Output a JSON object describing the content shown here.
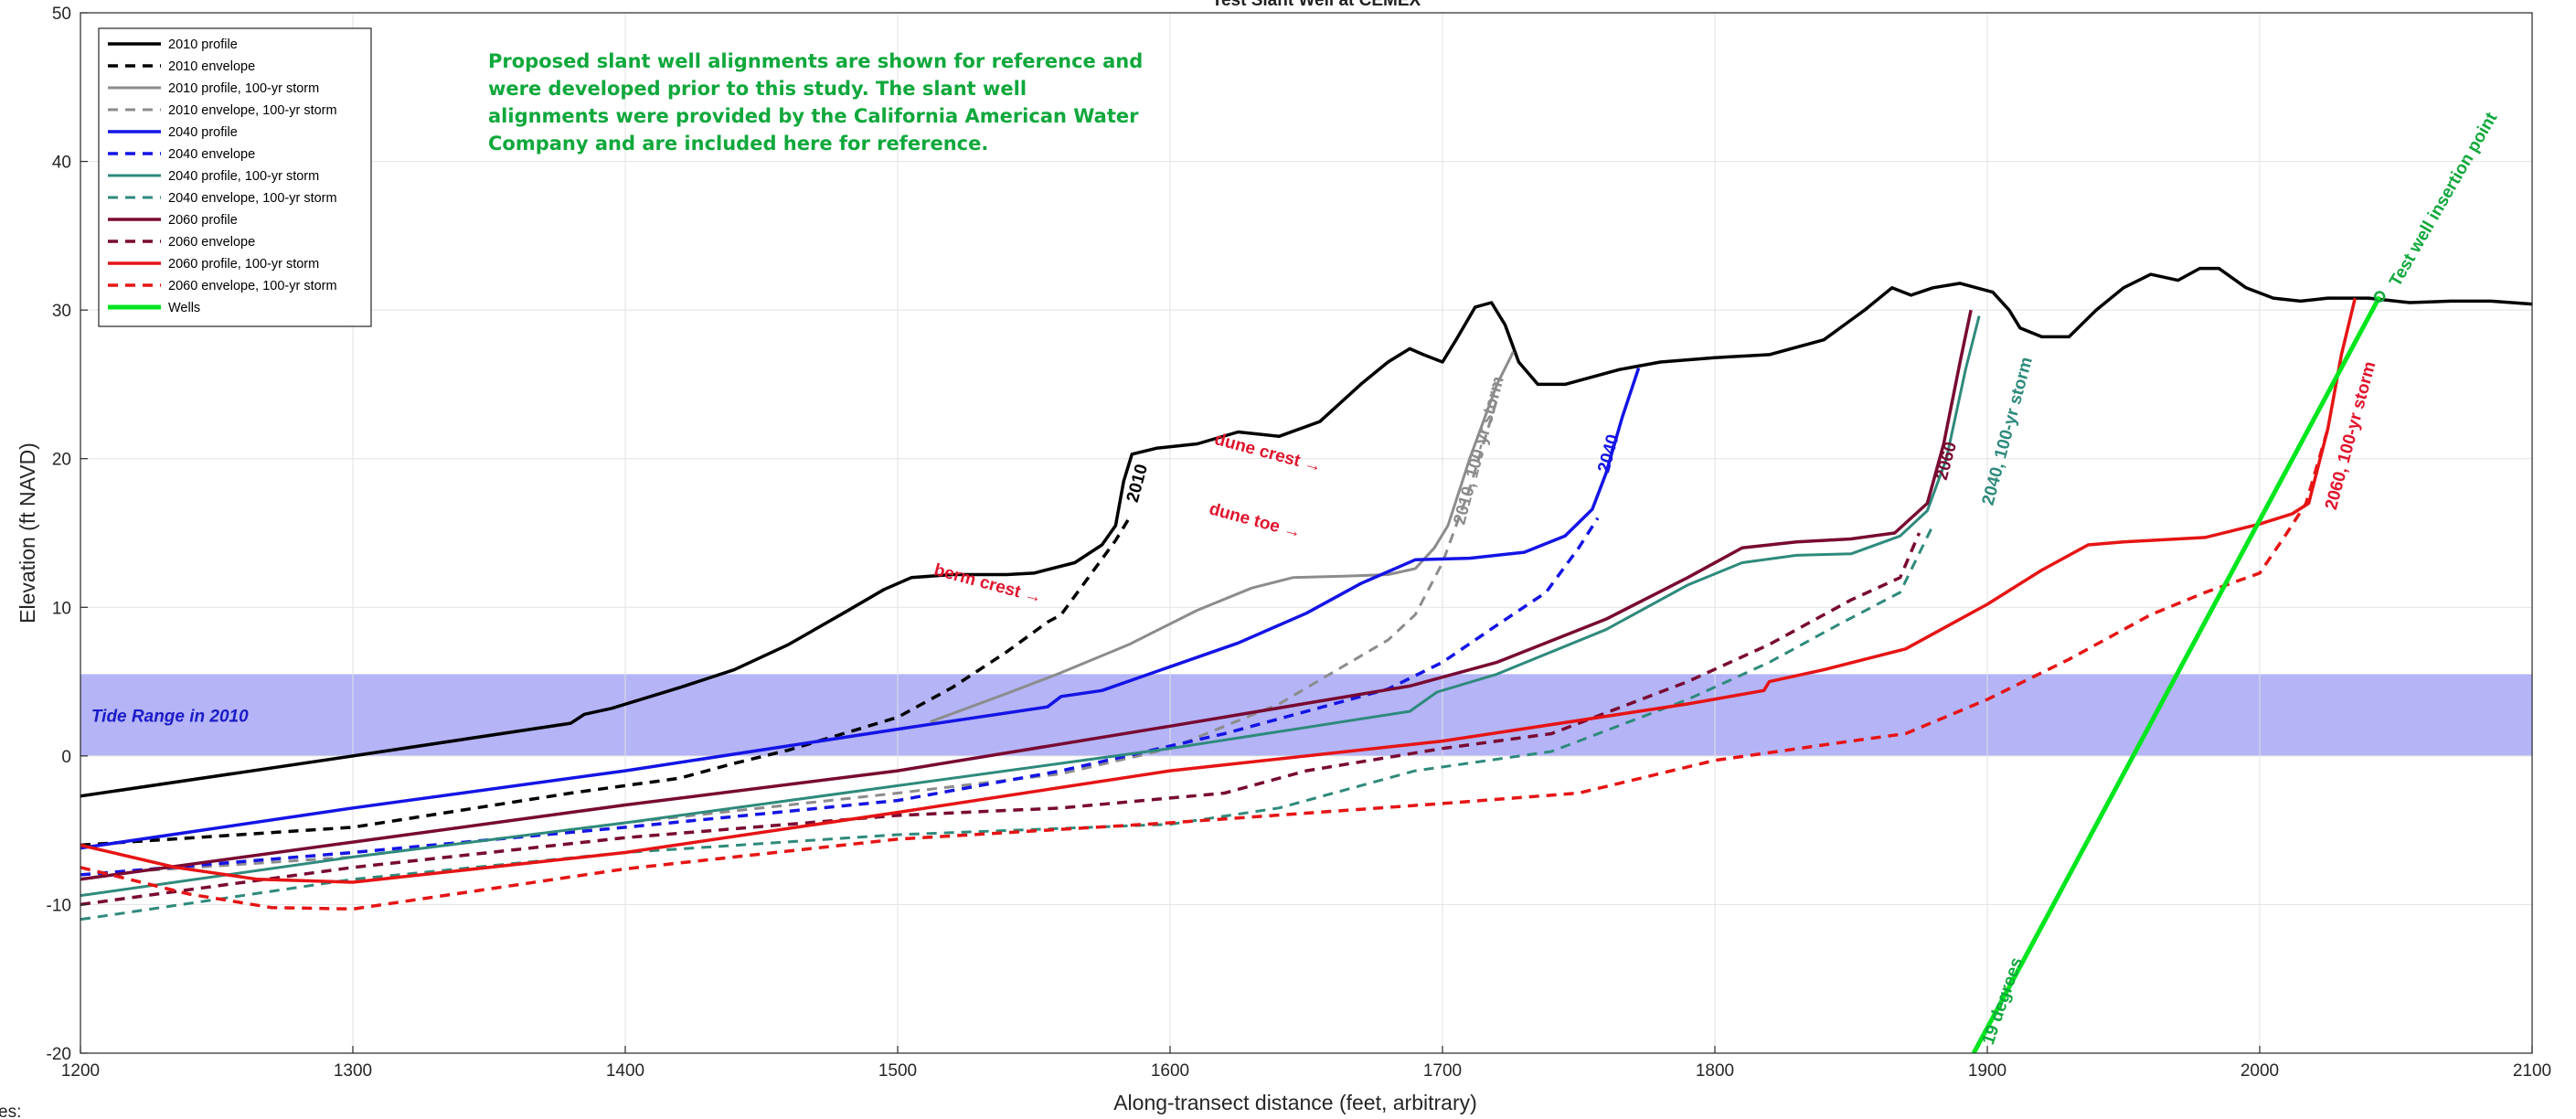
{
  "chart_data": {
    "type": "line",
    "title": "Test Slant Well at CEMEX",
    "xlabel": "Along-transect distance (feet, arbitrary)",
    "ylabel": "Elevation (ft NAVD)",
    "xlim": [
      1200,
      2100
    ],
    "ylim": [
      -20,
      50
    ],
    "xticks": [
      1200,
      1300,
      1400,
      1500,
      1600,
      1700,
      1800,
      1900,
      2000,
      2100
    ],
    "yticks": [
      -20,
      -10,
      0,
      10,
      20,
      30,
      40,
      50
    ],
    "grid": true,
    "legend_position": "top-left",
    "corner_text": "es:",
    "tide_range": {
      "label": "Tide Range in 2010",
      "y_min": 0,
      "y_max": 5.5,
      "color": "#b4b4f6"
    },
    "note": [
      "Proposed slant well alignments are shown for reference and",
      "were developed prior to this study. The slant well",
      "alignments were provided by the California American Water",
      "Company and are included here for reference."
    ],
    "series": [
      {
        "name": "2010 profile",
        "color": "#000000",
        "dash": "solid",
        "width": 3.5,
        "points": [
          [
            1200,
            -2.7
          ],
          [
            1300,
            0
          ],
          [
            1380,
            2.2
          ],
          [
            1385,
            2.8
          ],
          [
            1395,
            3.2
          ],
          [
            1420,
            4.6
          ],
          [
            1440,
            5.8
          ],
          [
            1460,
            7.5
          ],
          [
            1480,
            9.6
          ],
          [
            1495,
            11.2
          ],
          [
            1505,
            12
          ],
          [
            1520,
            12.2
          ],
          [
            1540,
            12.2
          ],
          [
            1550,
            12.3
          ],
          [
            1565,
            13
          ],
          [
            1575,
            14.2
          ],
          [
            1580,
            15.5
          ],
          [
            1583,
            18.5
          ],
          [
            1586,
            20.3
          ],
          [
            1595,
            20.7
          ],
          [
            1610,
            21
          ],
          [
            1625,
            21.8
          ],
          [
            1640,
            21.5
          ],
          [
            1655,
            22.5
          ],
          [
            1670,
            25
          ],
          [
            1680,
            26.5
          ],
          [
            1688,
            27.4
          ],
          [
            1693,
            27
          ],
          [
            1700,
            26.5
          ],
          [
            1705,
            28
          ],
          [
            1712,
            30.2
          ],
          [
            1718,
            30.5
          ],
          [
            1723,
            29
          ],
          [
            1728,
            26.5
          ],
          [
            1735,
            25
          ],
          [
            1745,
            25
          ],
          [
            1755,
            25.5
          ],
          [
            1765,
            26
          ],
          [
            1780,
            26.5
          ],
          [
            1800,
            26.8
          ],
          [
            1820,
            27
          ],
          [
            1840,
            28
          ],
          [
            1855,
            30
          ],
          [
            1865,
            31.5
          ],
          [
            1872,
            31
          ],
          [
            1880,
            31.5
          ],
          [
            1890,
            31.8
          ],
          [
            1902,
            31.2
          ],
          [
            1908,
            30
          ],
          [
            1912,
            28.8
          ],
          [
            1920,
            28.2
          ],
          [
            1930,
            28.2
          ],
          [
            1940,
            30
          ],
          [
            1950,
            31.5
          ],
          [
            1960,
            32.4
          ],
          [
            1970,
            32
          ],
          [
            1978,
            32.8
          ],
          [
            1985,
            32.8
          ],
          [
            1995,
            31.5
          ],
          [
            2005,
            30.8
          ],
          [
            2015,
            30.6
          ],
          [
            2025,
            30.8
          ],
          [
            2040,
            30.8
          ],
          [
            2055,
            30.5
          ],
          [
            2070,
            30.6
          ],
          [
            2085,
            30.6
          ],
          [
            2100,
            30.4
          ]
        ]
      },
      {
        "name": "2010 envelope",
        "color": "#000000",
        "dash": "dash",
        "width": 3.5,
        "points": [
          [
            1200,
            -6
          ],
          [
            1300,
            -4.8
          ],
          [
            1380,
            -2.5
          ],
          [
            1420,
            -1.5
          ],
          [
            1440,
            -0.5
          ],
          [
            1460,
            0.4
          ],
          [
            1480,
            1.5
          ],
          [
            1500,
            2.6
          ],
          [
            1520,
            4.6
          ],
          [
            1540,
            7
          ],
          [
            1555,
            9
          ],
          [
            1560,
            9.5
          ],
          [
            1570,
            12
          ],
          [
            1580,
            14.5
          ],
          [
            1585,
            16
          ]
        ]
      },
      {
        "name": "2010 profile, 100-yr storm",
        "color": "#8c8c8c",
        "dash": "solid",
        "width": 3,
        "points": [
          [
            1512,
            2.3
          ],
          [
            1540,
            4.2
          ],
          [
            1560,
            5.6
          ],
          [
            1585,
            7.5
          ],
          [
            1610,
            9.8
          ],
          [
            1630,
            11.3
          ],
          [
            1645,
            12
          ],
          [
            1665,
            12.1
          ],
          [
            1680,
            12.2
          ],
          [
            1690,
            12.6
          ],
          [
            1697,
            14
          ],
          [
            1702,
            15.5
          ],
          [
            1710,
            20
          ],
          [
            1720,
            25
          ],
          [
            1726,
            27.2
          ]
        ]
      },
      {
        "name": "2010 envelope, 100-yr storm",
        "color": "#8c8c8c",
        "dash": "dash",
        "width": 3,
        "points": [
          [
            1200,
            -8
          ],
          [
            1300,
            -6.8
          ],
          [
            1400,
            -4.5
          ],
          [
            1500,
            -2.5
          ],
          [
            1560,
            -1.2
          ],
          [
            1600,
            0.5
          ],
          [
            1640,
            3.5
          ],
          [
            1680,
            7.8
          ],
          [
            1690,
            9.5
          ],
          [
            1700,
            13
          ],
          [
            1710,
            18
          ],
          [
            1720,
            24
          ]
        ]
      },
      {
        "name": "2040 profile",
        "color": "#1414e6",
        "dash": "solid",
        "width": 3.5,
        "points": [
          [
            1200,
            -6.2
          ],
          [
            1300,
            -3.5
          ],
          [
            1400,
            -1
          ],
          [
            1500,
            1.8
          ],
          [
            1555,
            3.3
          ],
          [
            1560,
            4
          ],
          [
            1575,
            4.4
          ],
          [
            1600,
            6
          ],
          [
            1625,
            7.6
          ],
          [
            1650,
            9.6
          ],
          [
            1670,
            11.6
          ],
          [
            1690,
            13.2
          ],
          [
            1710,
            13.3
          ],
          [
            1730,
            13.7
          ],
          [
            1745,
            14.8
          ],
          [
            1755,
            16.6
          ],
          [
            1760,
            19
          ],
          [
            1766,
            22.8
          ],
          [
            1772,
            26.1
          ]
        ]
      },
      {
        "name": "2040 envelope",
        "color": "#1414e6",
        "dash": "dash",
        "width": 3.5,
        "points": [
          [
            1200,
            -8
          ],
          [
            1300,
            -6.5
          ],
          [
            1400,
            -4.8
          ],
          [
            1500,
            -3
          ],
          [
            1560,
            -1
          ],
          [
            1620,
            1.5
          ],
          [
            1680,
            4.5
          ],
          [
            1700,
            6.3
          ],
          [
            1720,
            8.8
          ],
          [
            1738,
            11
          ],
          [
            1750,
            14
          ],
          [
            1757,
            16
          ]
        ]
      },
      {
        "name": "2040 profile, 100-yr storm",
        "color": "#2e8a7c",
        "dash": "solid",
        "width": 3,
        "points": [
          [
            1200,
            -9.4
          ],
          [
            1300,
            -6.8
          ],
          [
            1400,
            -4.5
          ],
          [
            1500,
            -2
          ],
          [
            1600,
            0.5
          ],
          [
            1688,
            3
          ],
          [
            1698,
            4.3
          ],
          [
            1720,
            5.5
          ],
          [
            1760,
            8.5
          ],
          [
            1790,
            11.5
          ],
          [
            1810,
            13
          ],
          [
            1830,
            13.5
          ],
          [
            1850,
            13.6
          ],
          [
            1868,
            14.8
          ],
          [
            1878,
            16.5
          ],
          [
            1885,
            20
          ],
          [
            1892,
            26
          ],
          [
            1897,
            29.6
          ]
        ]
      },
      {
        "name": "2040 envelope, 100-yr storm",
        "color": "#2e8a7c",
        "dash": "dash",
        "width": 3,
        "points": [
          [
            1200,
            -11
          ],
          [
            1300,
            -8.3
          ],
          [
            1400,
            -6.5
          ],
          [
            1500,
            -5.3
          ],
          [
            1600,
            -4.6
          ],
          [
            1640,
            -3.5
          ],
          [
            1690,
            -1
          ],
          [
            1740,
            0.3
          ],
          [
            1790,
            3.8
          ],
          [
            1820,
            6.3
          ],
          [
            1845,
            8.8
          ],
          [
            1868,
            11
          ],
          [
            1880,
            15.5
          ]
        ]
      },
      {
        "name": "2060 profile",
        "color": "#780a32",
        "dash": "solid",
        "width": 3.5,
        "points": [
          [
            1200,
            -8.3
          ],
          [
            1300,
            -5.8
          ],
          [
            1400,
            -3.3
          ],
          [
            1500,
            -1
          ],
          [
            1600,
            2
          ],
          [
            1688,
            4.7
          ],
          [
            1700,
            5.3
          ],
          [
            1720,
            6.3
          ],
          [
            1760,
            9.2
          ],
          [
            1790,
            12
          ],
          [
            1810,
            14
          ],
          [
            1830,
            14.4
          ],
          [
            1850,
            14.6
          ],
          [
            1866,
            15
          ],
          [
            1878,
            17
          ],
          [
            1884,
            21
          ],
          [
            1890,
            26.5
          ],
          [
            1894,
            30
          ]
        ]
      },
      {
        "name": "2060 envelope",
        "color": "#780a32",
        "dash": "dash",
        "width": 3.5,
        "points": [
          [
            1200,
            -10
          ],
          [
            1300,
            -7.5
          ],
          [
            1400,
            -5.5
          ],
          [
            1500,
            -4
          ],
          [
            1560,
            -3.5
          ],
          [
            1620,
            -2.5
          ],
          [
            1650,
            -1
          ],
          [
            1700,
            0.5
          ],
          [
            1740,
            1.5
          ],
          [
            1790,
            5
          ],
          [
            1820,
            7.5
          ],
          [
            1850,
            10.5
          ],
          [
            1868,
            12
          ],
          [
            1875,
            15
          ]
        ]
      },
      {
        "name": "2060 profile, 100-yr storm",
        "color": "#e61414",
        "dash": "solid",
        "width": 3.5,
        "points": [
          [
            1200,
            -6
          ],
          [
            1235,
            -7.5
          ],
          [
            1265,
            -8.3
          ],
          [
            1300,
            -8.5
          ],
          [
            1400,
            -6.5
          ],
          [
            1500,
            -3.8
          ],
          [
            1600,
            -1
          ],
          [
            1700,
            1
          ],
          [
            1790,
            3.5
          ],
          [
            1818,
            4.4
          ],
          [
            1820,
            5
          ],
          [
            1840,
            5.8
          ],
          [
            1870,
            7.2
          ],
          [
            1900,
            10.2
          ],
          [
            1920,
            12.5
          ],
          [
            1937,
            14.2
          ],
          [
            1950,
            14.4
          ],
          [
            1960,
            14.5
          ],
          [
            1980,
            14.7
          ],
          [
            2000,
            15.6
          ],
          [
            2012,
            16.3
          ],
          [
            2018,
            17
          ],
          [
            2025,
            22
          ],
          [
            2030,
            27
          ],
          [
            2035,
            30.8
          ]
        ]
      },
      {
        "name": "2060 envelope, 100-yr storm",
        "color": "#e61414",
        "dash": "dash",
        "width": 3.5,
        "points": [
          [
            1200,
            -7.5
          ],
          [
            1240,
            -9.3
          ],
          [
            1270,
            -10.2
          ],
          [
            1300,
            -10.3
          ],
          [
            1400,
            -7.6
          ],
          [
            1500,
            -5.6
          ],
          [
            1600,
            -4.5
          ],
          [
            1700,
            -3.2
          ],
          [
            1750,
            -2.5
          ],
          [
            1800,
            -0.3
          ],
          [
            1850,
            1
          ],
          [
            1870,
            1.5
          ],
          [
            1900,
            3.8
          ],
          [
            1930,
            6.5
          ],
          [
            1960,
            9.5
          ],
          [
            1980,
            11
          ],
          [
            2000,
            12.3
          ],
          [
            2010,
            15
          ],
          [
            2017,
            17
          ],
          [
            2025,
            22
          ]
        ]
      },
      {
        "name": "Wells",
        "color": "#00e61e",
        "dash": "solid",
        "width": 5,
        "points": [
          [
            1895,
            -20
          ],
          [
            2044,
            30.9
          ]
        ]
      }
    ],
    "annotations": [
      {
        "text": "dune crest →",
        "x": 1616,
        "y": 21,
        "angle": 15,
        "color": "#e0142c"
      },
      {
        "text": "dune toe →",
        "x": 1614,
        "y": 16.3,
        "angle": 15,
        "color": "#e0142c"
      },
      {
        "text": "berm crest →",
        "x": 1513,
        "y": 12.2,
        "angle": 15,
        "color": "#e0142c"
      },
      {
        "text": "2010",
        "x": 1588,
        "y": 17,
        "angle": -75,
        "color": "#000000"
      },
      {
        "text": "2010, 100-yr storm",
        "x": 1708,
        "y": 15.5,
        "angle": -75,
        "color": "#8c8c8c"
      },
      {
        "text": "2040",
        "x": 1761,
        "y": 19,
        "angle": -75,
        "color": "#1414e6"
      },
      {
        "text": "2060",
        "x": 1885,
        "y": 18.5,
        "angle": -75,
        "color": "#780a32"
      },
      {
        "text": "2040, 100-yr storm",
        "x": 1902,
        "y": 16.8,
        "angle": -75,
        "color": "#2e8a7c"
      },
      {
        "text": "2060, 100-yr storm",
        "x": 2028,
        "y": 16.5,
        "angle": -75,
        "color": "#e0142c"
      },
      {
        "text": "19 degrees",
        "x": 1902,
        "y": -19.5,
        "angle": -71,
        "color": "#10a83c"
      },
      {
        "text": "Test well insertion point",
        "x": 2051,
        "y": 31.5,
        "angle": -60,
        "color": "#10a83c"
      }
    ],
    "markers": [
      {
        "name": "test-well-insertion-point",
        "x": 2044,
        "y": 30.9,
        "color": "#10a83c"
      }
    ]
  }
}
